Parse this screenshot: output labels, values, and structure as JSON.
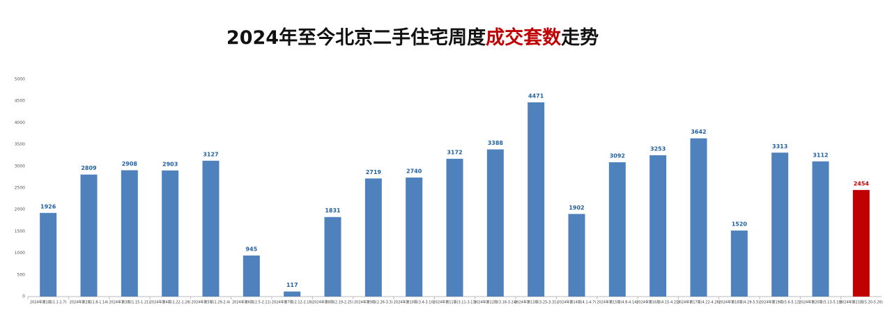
{
  "chart_data": {
    "type": "bar",
    "title": [
      {
        "text": "2024年至今北京二手住宅周度",
        "color": "#111111"
      },
      {
        "text": "成交套数",
        "color": "#c00000"
      },
      {
        "text": "走势",
        "color": "#111111"
      }
    ],
    "categories": [
      "2024年第1周(1.1-1.7)",
      "2024年第2周(1.8-1.14)",
      "2024年第3周(1.15-1.21)",
      "2024年第4周(1.22-1.28)",
      "2024年第5周(1.29-2.4)",
      "2024年第6周(2.5-2.11)",
      "2024年第7周(2.12-2.18)",
      "2024年第8周(2.19-2.25)",
      "2024年第9周(2.26-3.3)",
      "2024年第10周(3.4-3.10)",
      "2024年第11周(3.11-3.17)",
      "2024年第12周(3.18-3.24)",
      "2024年第13周(3.25-3.31)",
      "2024年第14周(4.1-4.7)",
      "2024年第15周(4.8-4.14)",
      "2024年第16周(4.15-4.21)",
      "2024年第17周(4.22-4.28)",
      "2024年第18周(4.29-5.5)",
      "2024年第19周(5.6-5.12)",
      "2024年第20周(5.13-5.19)",
      "2024年第21周(5.20-5.26)"
    ],
    "values": [
      1926,
      2809,
      2908,
      2903,
      3127,
      945,
      117,
      1831,
      2719,
      2740,
      3172,
      3388,
      4471,
      1902,
      3092,
      3253,
      3642,
      1520,
      3313,
      3112,
      2454
    ],
    "colors": [
      "#4f81bd",
      "#4f81bd",
      "#4f81bd",
      "#4f81bd",
      "#4f81bd",
      "#4f81bd",
      "#4f81bd",
      "#4f81bd",
      "#4f81bd",
      "#4f81bd",
      "#4f81bd",
      "#4f81bd",
      "#4f81bd",
      "#4f81bd",
      "#4f81bd",
      "#4f81bd",
      "#4f81bd",
      "#4f81bd",
      "#4f81bd",
      "#4f81bd",
      "#c00000"
    ],
    "label_colors": [
      "#1f5f9f",
      "#1f5f9f",
      "#1f5f9f",
      "#1f5f9f",
      "#1f5f9f",
      "#1f5f9f",
      "#1f5f9f",
      "#1f5f9f",
      "#1f5f9f",
      "#1f5f9f",
      "#1f5f9f",
      "#1f5f9f",
      "#1f5f9f",
      "#1f5f9f",
      "#1f5f9f",
      "#1f5f9f",
      "#1f5f9f",
      "#1f5f9f",
      "#1f5f9f",
      "#1f5f9f",
      "#c00000"
    ],
    "ylim": [
      0,
      5000
    ],
    "yticks": [
      0,
      500,
      1000,
      1500,
      2000,
      2500,
      3000,
      3500,
      4000,
      4500,
      5000
    ],
    "grid": false
  }
}
